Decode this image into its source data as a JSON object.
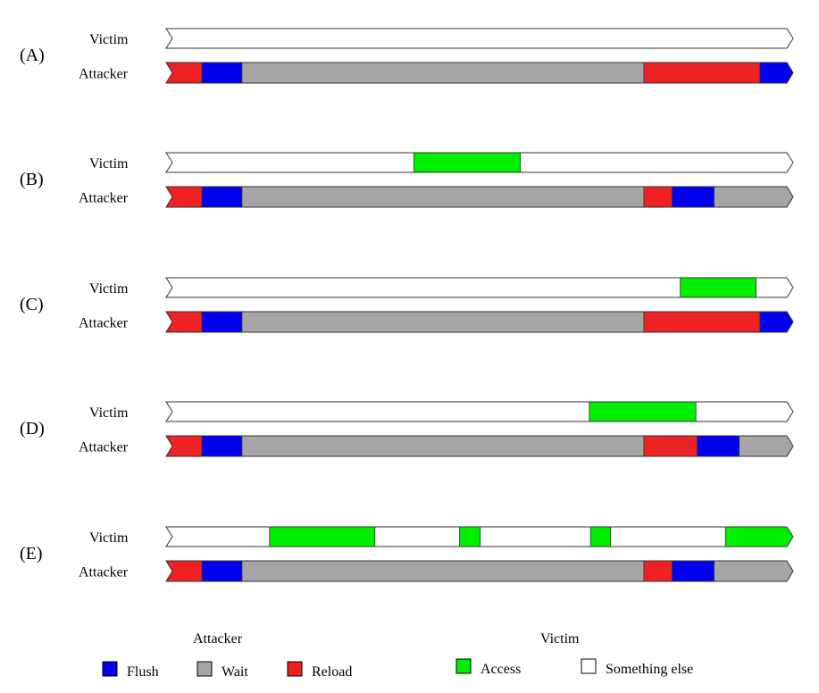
{
  "colors": {
    "flush": "#0000ee",
    "wait": "#a6a6a6",
    "reload": "#ee2222",
    "access": "#00ee00",
    "something_else": "#ffffff",
    "stroke": "#333333"
  },
  "row_labels": {
    "victim": "Victim",
    "attacker": "Attacker"
  },
  "timeline": {
    "start": 0,
    "end": 1000
  },
  "scenarios": [
    {
      "label": "(A)",
      "victim": [
        {
          "type": "something_else",
          "start": 0,
          "end": 1000
        }
      ],
      "attacker": [
        {
          "type": "reload",
          "start": 0,
          "end": 57
        },
        {
          "type": "flush",
          "start": 57,
          "end": 121
        },
        {
          "type": "wait",
          "start": 121,
          "end": 762
        },
        {
          "type": "reload",
          "start": 762,
          "end": 947
        },
        {
          "type": "flush",
          "start": 947,
          "end": 1000
        }
      ]
    },
    {
      "label": "(B)",
      "victim": [
        {
          "type": "something_else",
          "start": 0,
          "end": 395
        },
        {
          "type": "access",
          "start": 395,
          "end": 565
        },
        {
          "type": "something_else",
          "start": 565,
          "end": 1000
        }
      ],
      "attacker": [
        {
          "type": "reload",
          "start": 0,
          "end": 57
        },
        {
          "type": "flush",
          "start": 57,
          "end": 121
        },
        {
          "type": "wait",
          "start": 121,
          "end": 762
        },
        {
          "type": "reload",
          "start": 762,
          "end": 807
        },
        {
          "type": "flush",
          "start": 807,
          "end": 874
        },
        {
          "type": "wait",
          "start": 874,
          "end": 1000
        }
      ]
    },
    {
      "label": "(C)",
      "victim": [
        {
          "type": "something_else",
          "start": 0,
          "end": 820
        },
        {
          "type": "access",
          "start": 820,
          "end": 941
        },
        {
          "type": "something_else",
          "start": 941,
          "end": 1000
        }
      ],
      "attacker": [
        {
          "type": "reload",
          "start": 0,
          "end": 57
        },
        {
          "type": "flush",
          "start": 57,
          "end": 121
        },
        {
          "type": "wait",
          "start": 121,
          "end": 762
        },
        {
          "type": "reload",
          "start": 762,
          "end": 947
        },
        {
          "type": "flush",
          "start": 947,
          "end": 1000
        }
      ]
    },
    {
      "label": "(D)",
      "victim": [
        {
          "type": "something_else",
          "start": 0,
          "end": 675
        },
        {
          "type": "access",
          "start": 675,
          "end": 845
        },
        {
          "type": "something_else",
          "start": 845,
          "end": 1000
        }
      ],
      "attacker": [
        {
          "type": "reload",
          "start": 0,
          "end": 57
        },
        {
          "type": "flush",
          "start": 57,
          "end": 121
        },
        {
          "type": "wait",
          "start": 121,
          "end": 762
        },
        {
          "type": "reload",
          "start": 762,
          "end": 847
        },
        {
          "type": "flush",
          "start": 847,
          "end": 914
        },
        {
          "type": "wait",
          "start": 914,
          "end": 1000
        }
      ]
    },
    {
      "label": "(E)",
      "victim": [
        {
          "type": "something_else",
          "start": 0,
          "end": 165
        },
        {
          "type": "access",
          "start": 165,
          "end": 333
        },
        {
          "type": "something_else",
          "start": 333,
          "end": 468
        },
        {
          "type": "access",
          "start": 468,
          "end": 501
        },
        {
          "type": "something_else",
          "start": 501,
          "end": 677
        },
        {
          "type": "access",
          "start": 677,
          "end": 709
        },
        {
          "type": "something_else",
          "start": 709,
          "end": 892
        },
        {
          "type": "access",
          "start": 892,
          "end": 1000
        }
      ],
      "attacker": [
        {
          "type": "reload",
          "start": 0,
          "end": 57
        },
        {
          "type": "flush",
          "start": 57,
          "end": 121
        },
        {
          "type": "wait",
          "start": 121,
          "end": 762
        },
        {
          "type": "reload",
          "start": 762,
          "end": 807
        },
        {
          "type": "flush",
          "start": 807,
          "end": 874
        },
        {
          "type": "wait",
          "start": 874,
          "end": 1000
        }
      ]
    }
  ],
  "legend": {
    "attacker_title": "Attacker",
    "victim_title": "Victim",
    "items": [
      {
        "key": "flush",
        "label": "Flush"
      },
      {
        "key": "wait",
        "label": "Wait"
      },
      {
        "key": "reload",
        "label": "Reload"
      },
      {
        "key": "access",
        "label": "Access"
      },
      {
        "key": "something_else",
        "label": "Something else"
      }
    ]
  }
}
